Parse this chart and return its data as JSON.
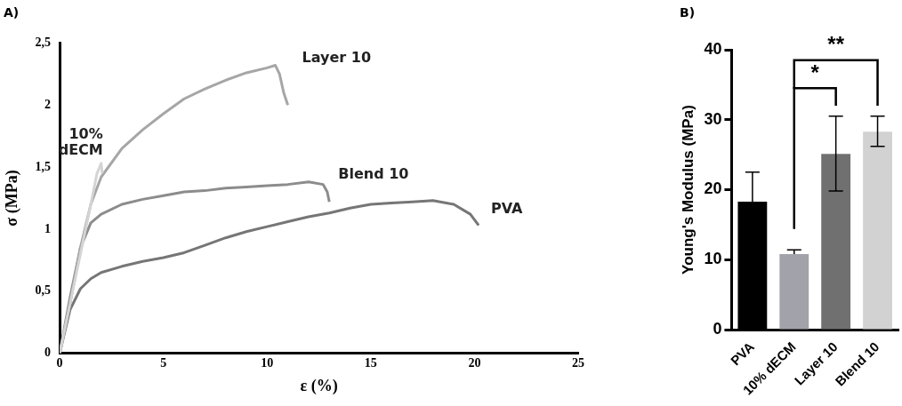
{
  "chart_data": [
    {
      "type": "line",
      "title": "A)",
      "xlabel": "ε (%)",
      "ylabel": "σ (MPa)",
      "xlim": [
        0,
        25
      ],
      "xticks": [
        0,
        5,
        10,
        15,
        20,
        25
      ],
      "ylim": [
        0,
        2.5
      ],
      "yticks": [
        {
          "value": 0,
          "label": "0"
        },
        {
          "value": 0.5,
          "label": "0,5"
        },
        {
          "value": 1,
          "label": "1"
        },
        {
          "value": 1.5,
          "label": "1,5"
        },
        {
          "value": 2,
          "label": "2"
        },
        {
          "value": 2.5,
          "label": "2,5"
        }
      ],
      "grid": false,
      "legend": false,
      "marker": "none",
      "line_style": "solid",
      "series": [
        {
          "name": "10% dECM",
          "color": "#d4d4d4",
          "x": [
            0,
            0.5,
            1,
            1.5,
            1.8,
            2,
            2.05
          ],
          "values": [
            0,
            0.4,
            0.8,
            1.2,
            1.45,
            1.53,
            1.45
          ]
        },
        {
          "name": "Layer 10",
          "color": "#a6a6a6",
          "x": [
            0,
            0.5,
            1,
            1.5,
            2,
            3,
            4,
            5,
            6,
            7,
            8,
            9,
            10,
            10.4,
            10.6,
            10.8,
            11
          ],
          "values": [
            0,
            0.4,
            0.85,
            1.2,
            1.42,
            1.65,
            1.8,
            1.93,
            2.05,
            2.13,
            2.2,
            2.26,
            2.3,
            2.32,
            2.25,
            2.1,
            2.0
          ]
        },
        {
          "name": "Blend 10",
          "color": "#8c8c8c",
          "x": [
            0,
            0.5,
            1,
            1.5,
            2,
            3,
            4,
            5,
            6,
            7,
            8,
            9,
            10,
            11,
            12,
            12.7,
            12.9,
            13
          ],
          "values": [
            0,
            0.45,
            0.85,
            1.05,
            1.12,
            1.2,
            1.24,
            1.27,
            1.3,
            1.31,
            1.33,
            1.34,
            1.35,
            1.36,
            1.38,
            1.36,
            1.3,
            1.22
          ]
        },
        {
          "name": "PVA",
          "color": "#767676",
          "x": [
            0,
            0.5,
            1,
            1.5,
            2,
            3,
            4,
            5,
            6,
            7,
            8,
            9,
            10,
            11,
            12,
            13,
            14,
            15,
            16,
            17,
            18,
            19,
            19.8,
            20.2
          ],
          "values": [
            0,
            0.35,
            0.52,
            0.6,
            0.65,
            0.7,
            0.74,
            0.77,
            0.81,
            0.87,
            0.93,
            0.98,
            1.02,
            1.06,
            1.1,
            1.13,
            1.17,
            1.2,
            1.21,
            1.22,
            1.23,
            1.2,
            1.12,
            1.03
          ]
        }
      ]
    },
    {
      "type": "bar",
      "title": "B)",
      "ylabel": "Young's Modulus (MPa)",
      "categories": [
        "PVA",
        "10% dECM",
        "Layer 10",
        "Blend 10"
      ],
      "values": [
        18.3,
        10.8,
        25.1,
        28.3
      ],
      "colors": [
        "#000000",
        "#a2a2aa",
        "#707070",
        "#d2d2d2"
      ],
      "errors": [
        [
          18.3,
          22.5
        ],
        [
          10.8,
          11.4
        ],
        [
          19.8,
          30.5
        ],
        [
          26.2,
          30.5
        ]
      ],
      "ylim": [
        0,
        40
      ],
      "yticks": [
        0,
        10,
        20,
        30,
        40
      ],
      "grid": false,
      "legend": false,
      "annotations": [
        "*",
        "**"
      ]
    }
  ]
}
